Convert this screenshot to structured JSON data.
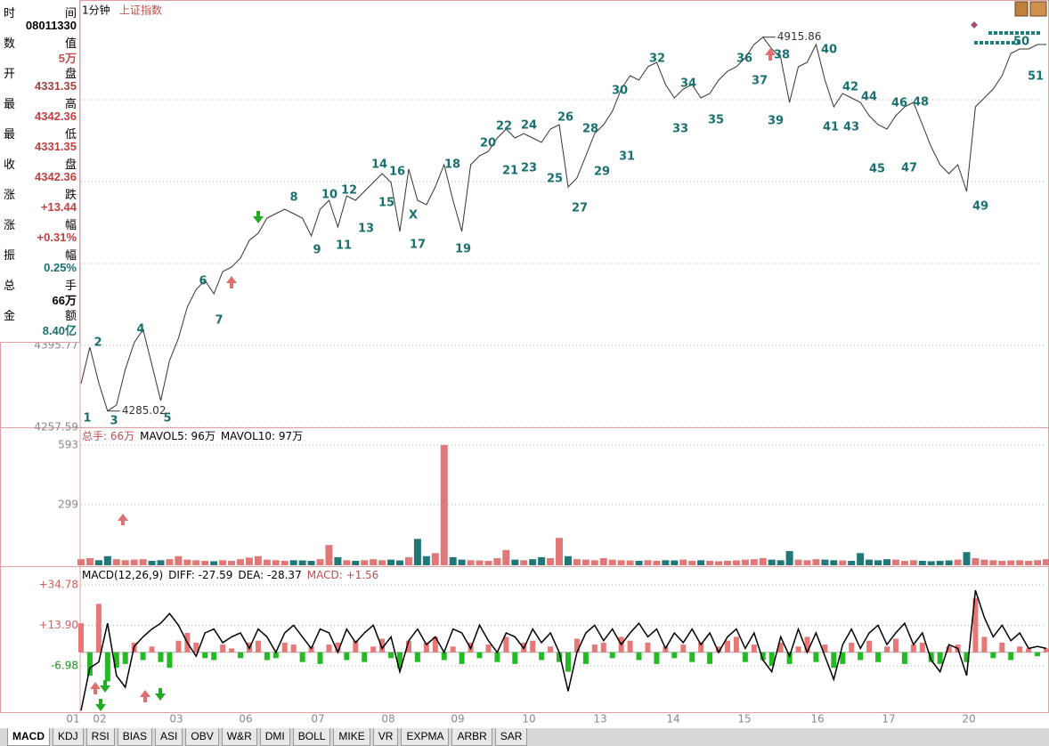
{
  "header": {
    "period": "1分钟",
    "index_name": "上证指数"
  },
  "info_panel": [
    {
      "label": [
        "时",
        "间"
      ],
      "value": "08011330"
    },
    {
      "label": [
        "数",
        "值"
      ],
      "value": "5万"
    },
    {
      "label": [
        "开",
        "盘"
      ],
      "value": "4331.35"
    },
    {
      "label": [
        "最",
        "高"
      ],
      "value": "4342.36"
    },
    {
      "label": [
        "最",
        "低"
      ],
      "value": "4331.35"
    },
    {
      "label": [
        "收",
        "盘"
      ],
      "value": "4342.36"
    },
    {
      "label": [
        "涨",
        "跌"
      ],
      "value": "+13.44"
    },
    {
      "label": [
        "涨",
        "幅"
      ],
      "value": "+0.31%"
    },
    {
      "label": [
        "振",
        "幅"
      ],
      "value": "0.25%"
    },
    {
      "label": [
        "总",
        "手"
      ],
      "value": "66万"
    },
    {
      "label": [
        "金",
        "额"
      ],
      "value": "8.40亿"
    }
  ],
  "chart_data": [
    {
      "type": "line",
      "color": "#333333",
      "ylim": [
        4257.59,
        4945.5
      ],
      "yticks": [
        4257.59,
        4395.77
      ],
      "gridlines": [
        4533.95,
        4672.13,
        4810.31
      ],
      "values": [
        4331.35,
        4392.8,
        4332.7,
        4285.02,
        4295.1,
        4355.2,
        4400.3,
        4422.8,
        4362.7,
        4302.7,
        4370.2,
        4407.8,
        4460.4,
        4490.4,
        4505.4,
        4482.9,
        4520.4,
        4528.0,
        4543.0,
        4573.0,
        4585.0,
        4610.6,
        4618.1,
        4625.6,
        4618.1,
        4610.6,
        4580.5,
        4625.6,
        4640.6,
        4595.6,
        4648.1,
        4640.6,
        4655.6,
        4670.7,
        4685.7,
        4670.7,
        4588.0,
        4693.2,
        4640.6,
        4633.1,
        4663.1,
        4700.7,
        4640.6,
        4588.0,
        4700.7,
        4715.7,
        4723.2,
        4745.8,
        4760.8,
        4745.8,
        4753.3,
        4745.8,
        4738.2,
        4760.8,
        4768.3,
        4663.1,
        4678.2,
        4715.7,
        4753.3,
        4768.3,
        4790.8,
        4828.4,
        4850.9,
        4843.4,
        4865.9,
        4873.4,
        4835.9,
        4813.3,
        4828.4,
        4835.9,
        4813.3,
        4820.9,
        4843.4,
        4858.4,
        4865.9,
        4880.9,
        4903.5,
        4915.86,
        4896.0,
        4880.9,
        4805.8,
        4865.9,
        4873.4,
        4903.5,
        4843.4,
        4798.3,
        4820.9,
        4813.3,
        4805.8,
        4783.3,
        4768.3,
        4760.8,
        4783.3,
        4798.3,
        4805.8,
        4768.3,
        4730.7,
        4700.7,
        4685.7,
        4700.7,
        4655.6,
        4798.3,
        4813.3,
        4828.4,
        4850.9,
        4888.4,
        4896.0,
        4896.0,
        4903.5,
        4903.5
      ],
      "marked_prices": [
        4915.86,
        4285.02
      ],
      "annotations": [
        "1",
        "2",
        "3",
        "4",
        "5",
        "6",
        "7",
        "8",
        "9",
        "10",
        "11",
        "12",
        "13",
        "14",
        "15",
        "16",
        "X",
        "17",
        "18",
        "19",
        "20",
        "21",
        "22",
        "23",
        "24",
        "25",
        "26",
        "27",
        "28",
        "29",
        "30",
        "31",
        "32",
        "33",
        "34",
        "35",
        "36",
        "37",
        "38",
        "39",
        "40",
        "41",
        "42",
        "43",
        "44",
        "45",
        "46",
        "47",
        "48",
        "49",
        "50",
        "51"
      ]
    },
    {
      "type": "bar",
      "legend": [
        "总手: 66万",
        "MAVOL5: 96万",
        "MAVOL10: 97万"
      ],
      "ylim": [
        0,
        676
      ],
      "yticks": [
        299,
        593
      ],
      "values": [
        30,
        35,
        25,
        45,
        30,
        25,
        28,
        30,
        22,
        25,
        30,
        45,
        28,
        25,
        22,
        20,
        25,
        22,
        30,
        38,
        45,
        28,
        25,
        22,
        25,
        24,
        22,
        30,
        100,
        40,
        25,
        22,
        25,
        30,
        25,
        28,
        24,
        40,
        130,
        45,
        60,
        593,
        40,
        28,
        25,
        24,
        22,
        35,
        75,
        28,
        25,
        30,
        40,
        35,
        135,
        45,
        30,
        28,
        25,
        35,
        28,
        25,
        24,
        22,
        25,
        22,
        25,
        24,
        28,
        22,
        25,
        22,
        20,
        22,
        24,
        28,
        30,
        35,
        28,
        25,
        70,
        28,
        25,
        30,
        28,
        25,
        24,
        22,
        60,
        28,
        25,
        30,
        28,
        22,
        25,
        22,
        20,
        22,
        24,
        28,
        65,
        35,
        28,
        25,
        22,
        24,
        25,
        22,
        25,
        30
      ]
    },
    {
      "type": "macd",
      "legend": [
        "MACD(12,26,9)",
        "DIFF: -27.59",
        "DEA: -28.37",
        "MACD: +1.56"
      ],
      "ylim": [
        -30.85,
        43.96
      ],
      "yticks": [
        {
          "value": 34.78,
          "label": "+34.78"
        },
        {
          "value": 13.9,
          "label": "+13.90"
        },
        -6.98
      ],
      "values": [
        15,
        -12,
        25,
        -15,
        -8,
        -6,
        5,
        -4,
        3,
        -5,
        -8,
        6,
        10,
        5,
        -3,
        -4,
        4,
        2,
        -3,
        5,
        6,
        -4,
        -3,
        5,
        4,
        -5,
        3,
        -6,
        4,
        5,
        -4,
        6,
        -5,
        3,
        7,
        -3,
        -8,
        6,
        -5,
        5,
        8,
        -4,
        3,
        -6,
        5,
        -3,
        4,
        -5,
        8,
        -6,
        5,
        6,
        -4,
        3,
        -5,
        -10,
        7,
        -6,
        4,
        5,
        -3,
        8,
        6,
        -4,
        5,
        -6,
        3,
        -3,
        4,
        -5,
        5,
        -6,
        3,
        6,
        8,
        -5,
        4,
        -4,
        -7,
        5,
        -6,
        3,
        8,
        -5,
        4,
        -8,
        -6,
        5,
        -4,
        6,
        -5,
        3,
        7,
        -6,
        4,
        5,
        -5,
        -6,
        3,
        4,
        -5,
        28,
        8,
        -3,
        5,
        -4,
        3,
        2,
        -2,
        2
      ],
      "line_values": [
        -30,
        -8,
        -5,
        15,
        -12,
        -18,
        3,
        8,
        12,
        15,
        20,
        14,
        5,
        -2,
        10,
        12,
        5,
        8,
        10,
        2,
        12,
        8,
        0,
        10,
        14,
        8,
        2,
        12,
        10,
        0,
        12,
        5,
        10,
        14,
        2,
        8,
        -10,
        6,
        12,
        4,
        8,
        0,
        12,
        10,
        2,
        14,
        6,
        0,
        10,
        8,
        2,
        12,
        5,
        10,
        0,
        -20,
        0,
        10,
        14,
        6,
        12,
        4,
        10,
        15,
        8,
        12,
        2,
        10,
        5,
        12,
        4,
        10,
        0,
        8,
        12,
        2,
        10,
        -4,
        -10,
        8,
        -2,
        12,
        0,
        10,
        -2,
        -14,
        4,
        12,
        2,
        10,
        14,
        4,
        10,
        15,
        4,
        10,
        -4,
        -10,
        4,
        2,
        -12,
        32,
        18,
        8,
        14,
        6,
        10,
        2,
        3,
        2
      ]
    }
  ],
  "time_axis": [
    "01",
    "02",
    "03",
    "06",
    "07",
    "08",
    "09",
    "10",
    "13",
    "14",
    "15",
    "16",
    "17",
    "20"
  ],
  "tabs": [
    "MACD",
    "KDJ",
    "RSI",
    "BIAS",
    "ASI",
    "OBV",
    "W&R",
    "DMI",
    "BOLL",
    "MIKE",
    "VR",
    "EXPMA",
    "ARBR",
    "SAR"
  ]
}
